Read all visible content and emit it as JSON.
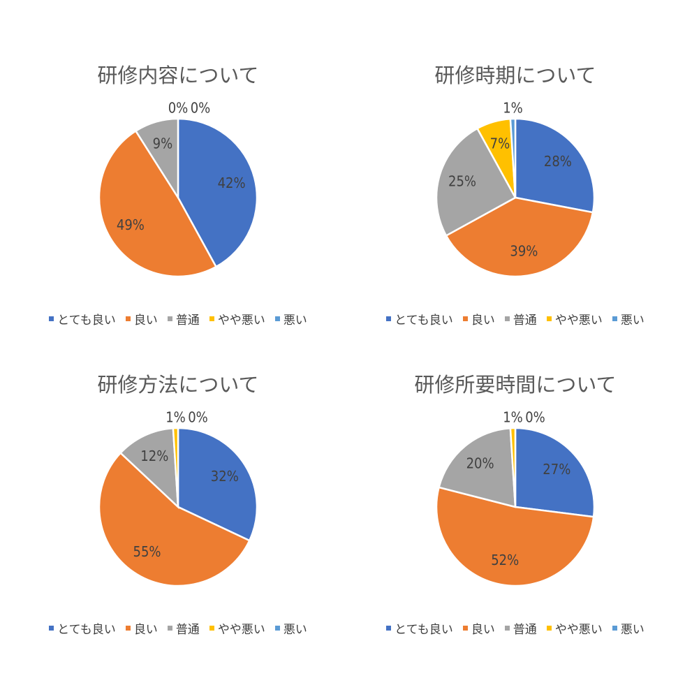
{
  "colors": {
    "series": [
      "#4472C4",
      "#ED7D31",
      "#A5A5A5",
      "#FFC000",
      "#5B9BD5"
    ],
    "text": "#404040",
    "title": "#595959"
  },
  "legend_labels": [
    "とても良い",
    "良い",
    "普通",
    "やや悪い",
    "悪い"
  ],
  "chart_data": [
    {
      "type": "pie",
      "title": "研修内容について",
      "categories": [
        "とても良い",
        "良い",
        "普通",
        "やや悪い",
        "悪い"
      ],
      "values": [
        42,
        49,
        9,
        0,
        0
      ],
      "labels": [
        "42%",
        "49%",
        "9%",
        "0%",
        "0%"
      ],
      "legend_position": "bottom"
    },
    {
      "type": "pie",
      "title": "研修時期について",
      "categories": [
        "とても良い",
        "良い",
        "普通",
        "やや悪い",
        "悪い"
      ],
      "values": [
        28,
        39,
        25,
        7,
        1
      ],
      "labels": [
        "28%",
        "39%",
        "25%",
        "7%",
        "1%"
      ],
      "legend_position": "bottom"
    },
    {
      "type": "pie",
      "title": "研修方法について",
      "categories": [
        "とても良い",
        "良い",
        "普通",
        "やや悪い",
        "悪い"
      ],
      "values": [
        32,
        55,
        12,
        1,
        0
      ],
      "labels": [
        "32%",
        "55%",
        "12%",
        "1%",
        "0%"
      ],
      "legend_position": "bottom"
    },
    {
      "type": "pie",
      "title": "研修所要時間について",
      "categories": [
        "とても良い",
        "良い",
        "普通",
        "やや悪い",
        "悪い"
      ],
      "values": [
        27,
        52,
        20,
        1,
        0
      ],
      "labels": [
        "27%",
        "52%",
        "20%",
        "1%",
        "0%"
      ],
      "legend_position": "bottom"
    }
  ]
}
